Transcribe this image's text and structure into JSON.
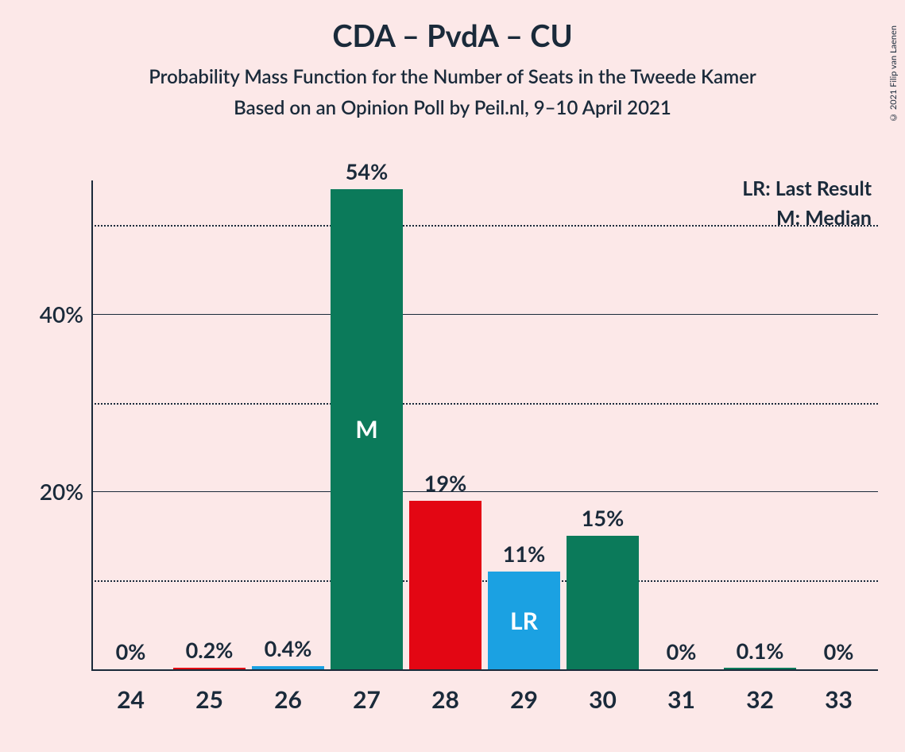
{
  "copyright": "© 2021 Filip van Laenen",
  "title": "CDA – PvdA – CU",
  "subtitle1": "Probability Mass Function for the Number of Seats in the Tweede Kamer",
  "subtitle2": "Based on an Opinion Poll by Peil.nl, 9–10 April 2021",
  "legend": {
    "lr": "LR: Last Result",
    "m": "M: Median"
  },
  "chart": {
    "type": "bar",
    "background_color": "#fce8e8",
    "text_color": "#1a2a3a",
    "ylim": [
      0,
      55
    ],
    "y_gridlines": [
      {
        "value": 50,
        "label": "",
        "style": "dotted"
      },
      {
        "value": 40,
        "label": "40%",
        "style": "solid"
      },
      {
        "value": 30,
        "label": "",
        "style": "dotted"
      },
      {
        "value": 20,
        "label": "20%",
        "style": "solid"
      },
      {
        "value": 10,
        "label": "",
        "style": "dotted"
      }
    ],
    "categories": [
      "24",
      "25",
      "26",
      "27",
      "28",
      "29",
      "30",
      "31",
      "32",
      "33"
    ],
    "bars": [
      {
        "value": 0,
        "label": "0%",
        "color": "#e30613",
        "inner": ""
      },
      {
        "value": 0.2,
        "label": "0.2%",
        "color": "#e30613",
        "inner": ""
      },
      {
        "value": 0.4,
        "label": "0.4%",
        "color": "#1ba1e2",
        "inner": ""
      },
      {
        "value": 54,
        "label": "54%",
        "color": "#0b7a5a",
        "inner": "M"
      },
      {
        "value": 19,
        "label": "19%",
        "color": "#e30613",
        "inner": ""
      },
      {
        "value": 11,
        "label": "11%",
        "color": "#1ba1e2",
        "inner": "LR"
      },
      {
        "value": 15,
        "label": "15%",
        "color": "#0b7a5a",
        "inner": ""
      },
      {
        "value": 0,
        "label": "0%",
        "color": "#0b7a5a",
        "inner": ""
      },
      {
        "value": 0.1,
        "label": "0.1%",
        "color": "#0b7a5a",
        "inner": ""
      },
      {
        "value": 0,
        "label": "0%",
        "color": "#0b7a5a",
        "inner": ""
      }
    ],
    "title_fontsize": 38,
    "subtitle_fontsize": 24,
    "axis_label_fontsize": 28,
    "bar_label_fontsize": 27,
    "x_label_fontsize": 30
  }
}
